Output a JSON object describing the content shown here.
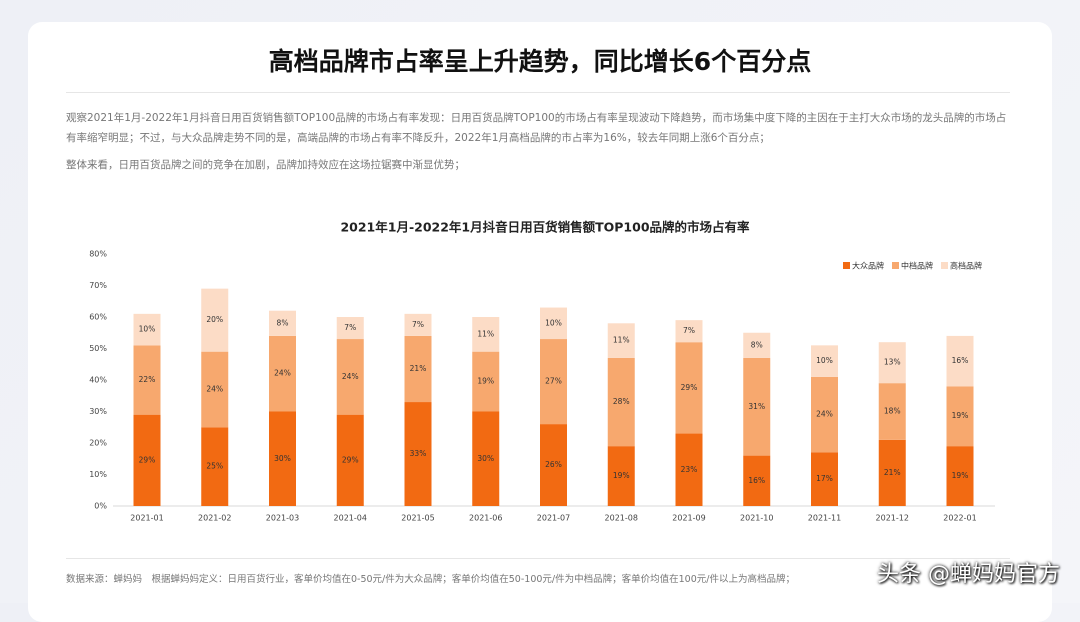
{
  "header": {
    "title": "高档品牌市占率呈上升趋势，同比增长6个百分点"
  },
  "paragraphs": [
    "观察2021年1月-2022年1月抖音日用百货销售额TOP100品牌的市场占有率发现：日用百货品牌TOP100的市场占有率呈现波动下降趋势，而市场集中度下降的主因在于主打大众市场的龙头品牌的市场占有率缩窄明显；不过，与大众品牌走势不同的是，高端品牌的市场占有率不降反升，2022年1月高档品牌的市占率为16%，较去年同期上涨6个百分点；",
    "整体来看，日用百货品牌之间的竞争在加剧，品牌加持效应在这场拉锯赛中渐显优势；"
  ],
  "chart_data": {
    "type": "stacked_bar",
    "title": "2021年1月-2022年1月抖音日用百货销售额TOP100品牌的市场占有率",
    "categories": [
      "2021-01",
      "2021-02",
      "2021-03",
      "2021-04",
      "2021-05",
      "2021-06",
      "2021-07",
      "2021-08",
      "2021-09",
      "2021-10",
      "2021-11",
      "2021-12",
      "2022-01"
    ],
    "series": [
      {
        "name": "大众品牌",
        "color": "#f26a12",
        "values": [
          29,
          25,
          30,
          29,
          33,
          30,
          26,
          19,
          23,
          16,
          17,
          21,
          19
        ],
        "value_labels": [
          "29%",
          "25%",
          "30%",
          "29%",
          "33%",
          "30%",
          "26%",
          "19%",
          "23%",
          "16%",
          "17%",
          "21%",
          "19%"
        ]
      },
      {
        "name": "中档品牌",
        "color": "#f7a86e",
        "values": [
          22,
          24,
          24,
          24,
          21,
          19,
          27,
          28,
          29,
          31,
          24,
          18,
          19
        ],
        "value_labels": [
          "22%",
          "24%",
          "24%",
          "24%",
          "21%",
          "19%",
          "27%",
          "28%",
          "29%",
          "31%",
          "24%",
          "18%",
          "19%"
        ]
      },
      {
        "name": "高档品牌",
        "color": "#fcdcc6",
        "values": [
          10,
          20,
          8,
          7,
          7,
          11,
          10,
          11,
          7,
          8,
          10,
          13,
          16
        ],
        "value_labels": [
          "10%",
          "20%",
          "8%",
          "7%",
          "7%",
          "11%",
          "10%",
          "11%",
          "7%",
          "8%",
          "10%",
          "13%",
          "16%"
        ]
      }
    ],
    "ylim": [
      0,
      80
    ],
    "yticks": [
      {
        "value": 0,
        "label": "0%"
      },
      {
        "value": 10,
        "label": "10%"
      },
      {
        "value": 20,
        "label": "20%"
      },
      {
        "value": 30,
        "label": "30%"
      },
      {
        "value": 40,
        "label": "40%"
      },
      {
        "value": 50,
        "label": "50%"
      },
      {
        "value": 60,
        "label": "60%"
      },
      {
        "value": 70,
        "label": "70%"
      },
      {
        "value": 80,
        "label": "80%"
      }
    ],
    "legend": "top-right"
  },
  "footer": {
    "source": "数据来源：蝉妈妈　根据蝉妈妈定义：日用百货行业，客单价均值在0-50元/件为大众品牌；客单价均值在50-100元/件为中档品牌；客单价均值在100元/件以上为高档品牌；"
  },
  "watermark": "头条 @蝉妈妈官方"
}
